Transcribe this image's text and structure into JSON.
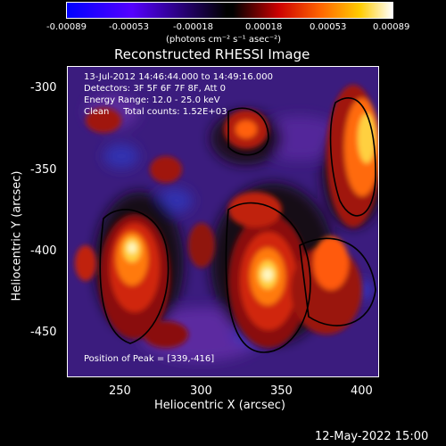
{
  "colorbar": {
    "ticks": [
      "-0.00089",
      "-0.00053",
      "-0.00018",
      "0.00018",
      "0.00053",
      "0.00089"
    ],
    "units": "(photons cm⁻² s⁻¹ asec⁻²)"
  },
  "title": "Reconstructed RHESSI Image",
  "info": {
    "line1": "13-Jul-2012 14:46:44.000 to 14:49:16.000",
    "line2": "Detectors: 3F 5F 6F 7F 8F, Att 0",
    "line3": "Energy Range: 12.0 - 25.0 keV",
    "line4": "Clean     Total counts: 1.52E+03"
  },
  "peak": "Position of Peak = [339,-416]",
  "axes": {
    "xlabel": "Heliocentric X (arcsec)",
    "ylabel": "Heliocentric Y (arcsec)",
    "xticks": [
      "250",
      "300",
      "350",
      "400"
    ],
    "yticks": [
      "-300",
      "-350",
      "-400",
      "-450"
    ]
  },
  "timestamp": "12-May-2022 15:00",
  "colors": {
    "low": "#0000ff",
    "mid": "#000000",
    "high": "#ffffff"
  }
}
